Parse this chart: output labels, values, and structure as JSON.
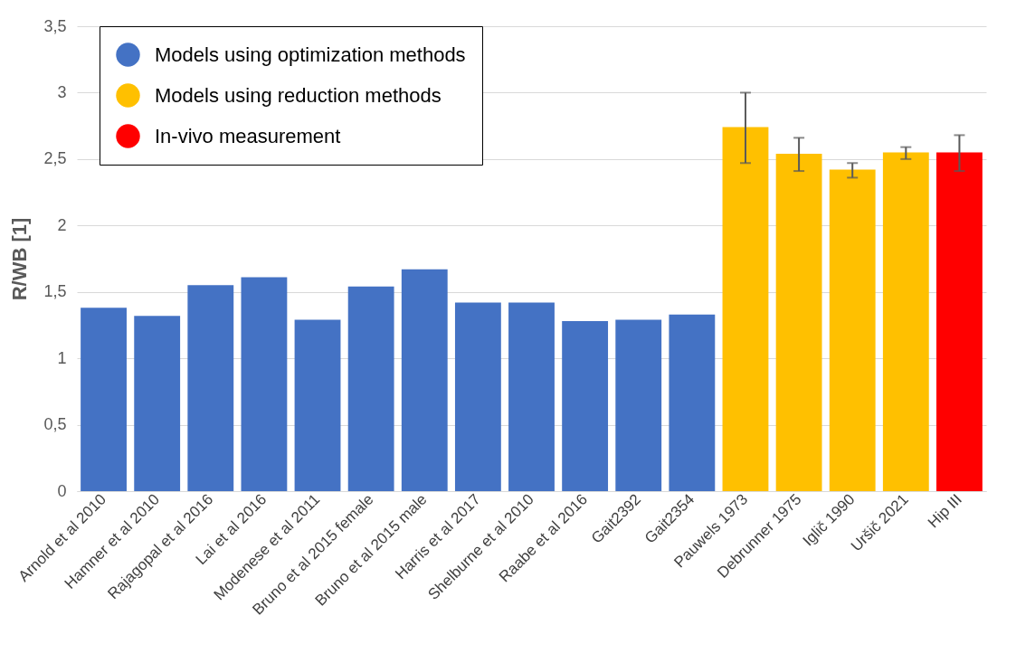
{
  "chart_data": {
    "type": "bar",
    "ylabel": "R/WB [1]",
    "categories": [
      "Arnold et al 2010",
      "Hamner et al 2010",
      "Rajagopal et al 2016",
      "Lai et al 2016",
      "Modenese et al 2011",
      "Bruno et al 2015 female",
      "Bruno et al 2015 male",
      "Harris et al 2017",
      "Shelburne et al 2010",
      "Raabe et al 2016",
      "Gait2392",
      "Gait2354",
      "Pauwels 1973",
      "Debrunner 1975",
      "Iglič 1990",
      "Uršič 2021",
      "Hip III"
    ],
    "series": [
      {
        "name": "Models using optimization methods",
        "color": "#4472c4",
        "values": [
          1.38,
          1.32,
          1.55,
          1.61,
          1.29,
          1.54,
          1.67,
          1.42,
          1.42,
          1.28,
          1.29,
          1.33,
          null,
          null,
          null,
          null,
          null
        ]
      },
      {
        "name": "Models using reduction methods",
        "color": "#ffc000",
        "values": [
          null,
          null,
          null,
          null,
          null,
          null,
          null,
          null,
          null,
          null,
          null,
          null,
          2.74,
          2.54,
          2.42,
          2.55,
          null
        ],
        "errors": [
          null,
          null,
          null,
          null,
          null,
          null,
          null,
          null,
          null,
          null,
          null,
          null,
          [
            2.47,
            3.0
          ],
          [
            2.41,
            2.66
          ],
          [
            2.36,
            2.47
          ],
          [
            2.5,
            2.59
          ],
          null
        ]
      },
      {
        "name": "In-vivo measurement",
        "color": "#ff0000",
        "values": [
          null,
          null,
          null,
          null,
          null,
          null,
          null,
          null,
          null,
          null,
          null,
          null,
          null,
          null,
          null,
          null,
          2.55
        ],
        "errors": [
          null,
          null,
          null,
          null,
          null,
          null,
          null,
          null,
          null,
          null,
          null,
          null,
          null,
          null,
          null,
          null,
          [
            2.41,
            2.68
          ]
        ]
      }
    ],
    "ylim": [
      0,
      3.5
    ],
    "yticks": [
      {
        "value": 0,
        "label": "0"
      },
      {
        "value": 0.5,
        "label": "0,5"
      },
      {
        "value": 1,
        "label": "1"
      },
      {
        "value": 1.5,
        "label": "1,5"
      },
      {
        "value": 2,
        "label": "2"
      },
      {
        "value": 2.5,
        "label": "2,5"
      },
      {
        "value": 3,
        "label": "3"
      },
      {
        "value": 3.5,
        "label": "3,5"
      }
    ],
    "grid": "y",
    "legend": "top left"
  }
}
